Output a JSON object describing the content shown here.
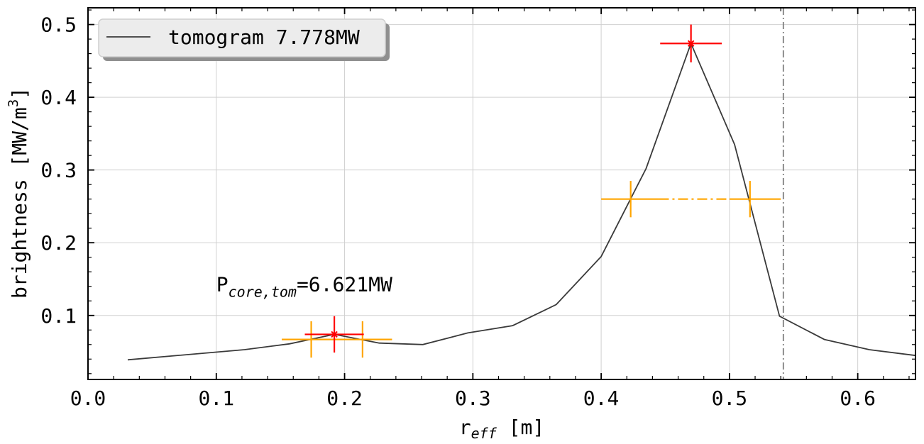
{
  "chart_data": {
    "type": "line",
    "xlabel": "r",
    "xlabel_sub": "eff",
    "xlabel_unit": " [m]",
    "ylabel": "brightness [MW/m",
    "ylabel_sup": "3",
    "ylabel_end": "]",
    "xlim": [
      0.0,
      0.645
    ],
    "ylim": [
      0.012,
      0.523
    ],
    "xticks": [
      0.0,
      0.1,
      0.2,
      0.3,
      0.4,
      0.5,
      0.6
    ],
    "xtick_labels": [
      "0.0",
      "0.1",
      "0.2",
      "0.3",
      "0.4",
      "0.5",
      "0.6"
    ],
    "yticks": [
      0.1,
      0.2,
      0.3,
      0.4,
      0.5
    ],
    "ytick_labels": [
      "0.1",
      "0.2",
      "0.3",
      "0.4",
      "0.5"
    ],
    "grid": true,
    "legend_position": "top-left",
    "series": [
      {
        "name": "tomogram 7.778MW",
        "color": "#3a3a3a",
        "x": [
          0.031,
          0.122,
          0.157,
          0.192,
          0.227,
          0.261,
          0.296,
          0.331,
          0.365,
          0.4,
          0.435,
          0.47,
          0.504,
          0.539,
          0.574,
          0.609,
          0.645
        ],
        "y": [
          0.039,
          0.053,
          0.061,
          0.074,
          0.062,
          0.06,
          0.076,
          0.086,
          0.115,
          0.181,
          0.302,
          0.474,
          0.335,
          0.099,
          0.067,
          0.053,
          0.045
        ]
      }
    ],
    "red_markers": [
      {
        "x": 0.192,
        "y": 0.074,
        "xerr": 0.023,
        "yerr": 0.025
      },
      {
        "x": 0.47,
        "y": 0.474,
        "xerr": 0.024,
        "yerr": 0.026
      }
    ],
    "orange_markers": [
      {
        "x": 0.174,
        "y": 0.067,
        "yerr": 0.025
      },
      {
        "x": 0.214,
        "y": 0.067,
        "yerr": 0.025
      },
      {
        "x": 0.423,
        "y": 0.26,
        "yerr": 0.025
      },
      {
        "x": 0.516,
        "y": 0.26,
        "yerr": 0.025
      }
    ],
    "orange_hlines": [
      {
        "x0": 0.151,
        "x1": 0.237,
        "y": 0.067
      },
      {
        "x0": 0.4,
        "x1": 0.54,
        "y": 0.26
      }
    ],
    "vline_x": 0.542,
    "annotation": {
      "main": "P",
      "sub": "core,tom",
      "tail": "=6.621MW",
      "x": 0.1,
      "y": 0.143
    },
    "colors": {
      "red": "#ff0000",
      "orange": "#ffa500",
      "vline": "#808080",
      "grid": "#d0d0d0"
    }
  }
}
